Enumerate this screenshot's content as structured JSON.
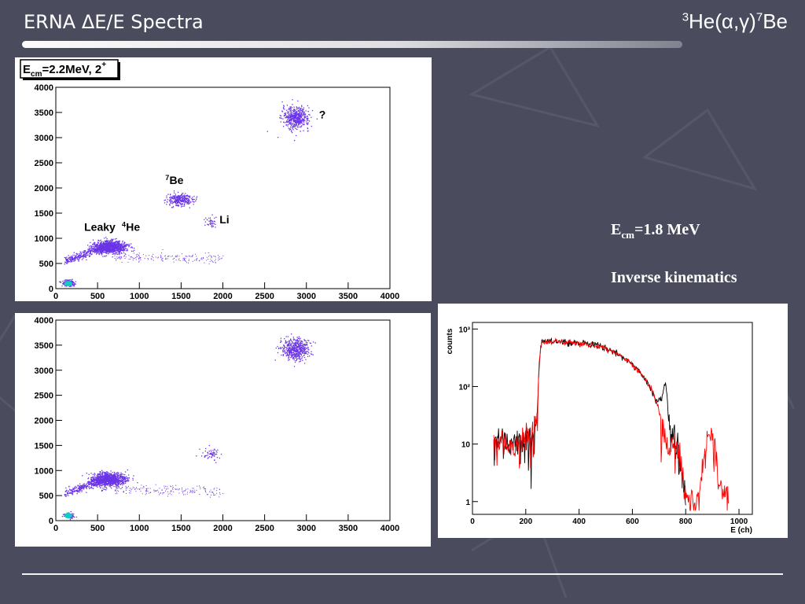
{
  "slide": {
    "title_left": "ERNA ΔE/E Spectra",
    "title_right_pre": "3",
    "title_right_mid": "He(α,γ)",
    "title_right_sup": "7",
    "title_right_post": "Be",
    "note_ecm_main": "E",
    "note_ecm_sub": "cm",
    "note_ecm_rest": "=1.8 MeV",
    "note_kinematics": "Inverse kinematics"
  },
  "colors": {
    "background": "#4a4c5e",
    "scatter": "#6a34e6",
    "scatter_dense": "#3a14d0",
    "core": "#14c8c8",
    "spectrum_black": "#000000",
    "spectrum_red": "#ff0000"
  },
  "chart_data": [
    {
      "type": "scatter",
      "label_box": "E",
      "label_box_sub": "cm",
      "label_box_rest": "=2.2MeV, 2",
      "label_box_sup": "+",
      "xlim": [
        0,
        4000
      ],
      "ylim": [
        0,
        4000
      ],
      "xticks": [
        "0",
        "500",
        "1000",
        "1500",
        "2000",
        "2500",
        "3000",
        "3500",
        "4000"
      ],
      "yticks": [
        "0",
        "500",
        "1000",
        "1500",
        "2000",
        "2500",
        "3000",
        "3500",
        "4000"
      ],
      "annotations": [
        {
          "text": "?",
          "x": 3150,
          "y": 3380
        },
        {
          "text": "7",
          "x": 1310,
          "y": 2160,
          "sup": true
        },
        {
          "text": "Be",
          "x": 1360,
          "y": 2080
        },
        {
          "text": "Li",
          "x": 1960,
          "y": 1300
        },
        {
          "text": "Leaky ",
          "x": 340,
          "y": 1150
        },
        {
          "text": "4",
          "x": 790,
          "y": 1230,
          "sup": true
        },
        {
          "text": "He",
          "x": 840,
          "y": 1150
        }
      ],
      "clusters": [
        {
          "x": 2870,
          "y": 3400,
          "sx": 80,
          "sy": 110,
          "n": 500
        },
        {
          "x": 1480,
          "y": 1780,
          "sx": 75,
          "sy": 60,
          "n": 300
        },
        {
          "x": 1850,
          "y": 1320,
          "sx": 35,
          "sy": 60,
          "n": 40
        },
        {
          "x": 640,
          "y": 830,
          "sx": 100,
          "sy": 60,
          "n": 1000
        },
        {
          "x": 150,
          "y": 120,
          "sx": 35,
          "sy": 30,
          "n": 200
        }
      ]
    },
    {
      "type": "scatter",
      "xlim": [
        0,
        4000
      ],
      "ylim": [
        0,
        4000
      ],
      "xticks": [
        "0",
        "500",
        "1000",
        "1500",
        "2000",
        "2500",
        "3000",
        "3500",
        "4000"
      ],
      "yticks": [
        "0",
        "500",
        "1000",
        "1500",
        "2000",
        "2500",
        "3000",
        "3500",
        "4000"
      ],
      "clusters": [
        {
          "x": 2860,
          "y": 3420,
          "sx": 80,
          "sy": 110,
          "n": 500
        },
        {
          "x": 1850,
          "y": 1330,
          "sx": 55,
          "sy": 60,
          "n": 60
        },
        {
          "x": 630,
          "y": 830,
          "sx": 100,
          "sy": 65,
          "n": 1000
        },
        {
          "x": 150,
          "y": 110,
          "sx": 30,
          "sy": 25,
          "n": 130
        }
      ]
    },
    {
      "type": "line",
      "xlabel": "E (ch)",
      "ylabel": "counts",
      "xlim": [
        0,
        1050
      ],
      "ylim": [
        0.6,
        1300
      ],
      "yscale": "log",
      "xticks": [
        "0",
        "200",
        "400",
        "600",
        "800",
        "1000"
      ],
      "yticks": [
        "1",
        "10",
        "10²",
        "10³"
      ],
      "series": [
        {
          "color": "black",
          "x": [
            80,
            150,
            220,
            245,
            260,
            300,
            350,
            400,
            450,
            500,
            550,
            600,
            650,
            690,
            710,
            725,
            735,
            760,
            790,
            800
          ],
          "y": [
            10,
            10,
            13,
            30,
            600,
            600,
            590,
            570,
            540,
            460,
            360,
            240,
            130,
            55,
            60,
            120,
            20,
            10,
            2,
            1
          ]
        },
        {
          "color": "red",
          "x": [
            80,
            150,
            220,
            245,
            260,
            300,
            350,
            400,
            450,
            500,
            550,
            600,
            650,
            690,
            710,
            740,
            760,
            800,
            850,
            870,
            880,
            900,
            910,
            920,
            960
          ],
          "y": [
            10,
            10,
            13,
            30,
            600,
            600,
            590,
            570,
            540,
            460,
            360,
            240,
            130,
            55,
            20,
            8,
            9,
            1,
            1,
            5,
            13,
            15,
            9,
            2,
            1
          ]
        }
      ]
    }
  ]
}
